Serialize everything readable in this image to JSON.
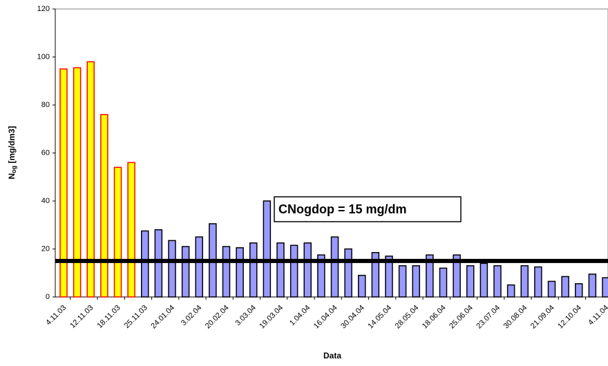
{
  "chart_data": {
    "type": "bar",
    "x_label": "Data",
    "y_label": [
      "N",
      "og",
      " [mg/dm3]"
    ],
    "annotation": "CNogdop = 15 mg/dm",
    "reference_line": 15,
    "reference_color": "#000000",
    "categories": [
      "4.11.03",
      null,
      "12.11.03",
      null,
      "18.11.03",
      null,
      "25.11.03",
      null,
      "24.01.04",
      null,
      "3.02.04",
      null,
      "20.02.04",
      null,
      "3.03.04",
      null,
      "19.03.04",
      null,
      "1.04.04",
      null,
      "16.04.04",
      null,
      "30.04.04",
      null,
      "14.05.04",
      null,
      "28.05.04",
      null,
      "18.06.04",
      null,
      "25.06.04",
      null,
      "23.07.04",
      null,
      "30.08.04",
      null,
      "21.09.04",
      null,
      "12.10.04",
      null,
      "4.11.04"
    ],
    "values": [
      95,
      95.5,
      98,
      76,
      54,
      56,
      27.5,
      28,
      23.5,
      21,
      25,
      30.5,
      21,
      20.5,
      22.5,
      40,
      22.5,
      21.5,
      22.5,
      17.5,
      25,
      20,
      9,
      18.5,
      17,
      13,
      13,
      17.5,
      12,
      17.5,
      13,
      14,
      13,
      5,
      13,
      12.5,
      6.5,
      8.5,
      5.5,
      9.5,
      8
    ],
    "colors": [
      "#ffff00",
      "#ffff00",
      "#ffff00",
      "#ffff00",
      "#ffff00",
      "#ffff00",
      "#9999ff",
      "#9999ff",
      "#9999ff",
      "#9999ff",
      "#9999ff",
      "#9999ff",
      "#9999ff",
      "#9999ff",
      "#9999ff",
      "#9999ff",
      "#9999ff",
      "#9999ff",
      "#9999ff",
      "#9999ff",
      "#9999ff",
      "#9999ff",
      "#9999ff",
      "#9999ff",
      "#9999ff",
      "#9999ff",
      "#9999ff",
      "#9999ff",
      "#9999ff",
      "#9999ff",
      "#9999ff",
      "#9999ff",
      "#9999ff",
      "#9999ff",
      "#9999ff",
      "#9999ff",
      "#9999ff",
      "#9999ff",
      "#9999ff",
      "#9999ff",
      "#9999ff"
    ],
    "edge_colors": [
      "#ff0000",
      "#ff0000",
      "#ff0000",
      "#ff0000",
      "#ff0000",
      "#ff0000",
      "#000000",
      "#000000",
      "#000000",
      "#000000",
      "#000000",
      "#000000",
      "#000000",
      "#000000",
      "#000000",
      "#000000",
      "#000000",
      "#000000",
      "#000000",
      "#000000",
      "#000000",
      "#000000",
      "#000000",
      "#000000",
      "#000000",
      "#000000",
      "#000000",
      "#000000",
      "#000000",
      "#000000",
      "#000000",
      "#000000",
      "#000000",
      "#000000",
      "#000000",
      "#000000",
      "#000000",
      "#000000",
      "#000000",
      "#000000",
      "#000000"
    ],
    "ylim": [
      0,
      120
    ],
    "yticks": [
      0,
      20,
      40,
      60,
      80,
      100,
      120
    ],
    "grid": false
  }
}
